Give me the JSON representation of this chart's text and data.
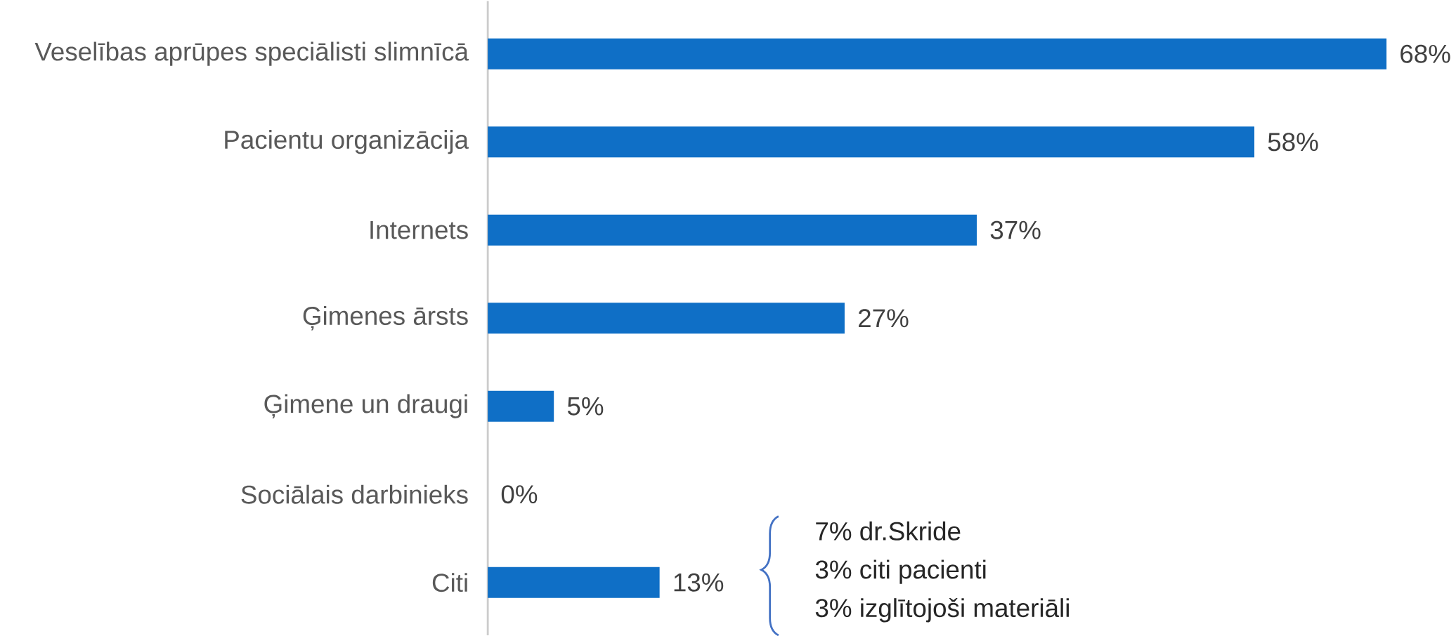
{
  "chart_data": {
    "type": "bar",
    "orientation": "horizontal",
    "categories": [
      "Veselības aprūpes speciālisti slimnīcā",
      "Pacientu organizācija",
      "Internets",
      "Ģimenes ārsts",
      "Ģimene un draugi",
      "Sociālais darbinieks",
      "Citi"
    ],
    "values": [
      68,
      58,
      37,
      27,
      5,
      0,
      13
    ],
    "value_labels": [
      "68%",
      "58%",
      "37%",
      "27%",
      "5%",
      "0%",
      "13%"
    ],
    "color": "#0f6fc6",
    "tick_labels": "y",
    "annotations": [
      "7% dr.Skride",
      "3% citi pacienti",
      "3% izglītojoši materiāli"
    ]
  }
}
